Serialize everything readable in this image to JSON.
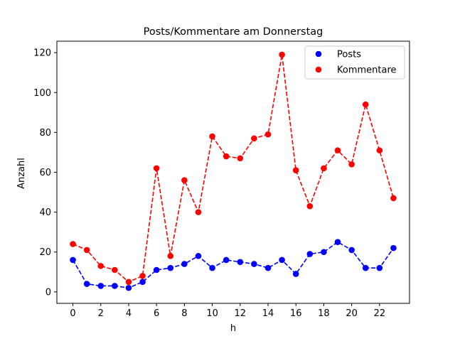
{
  "chart_data": {
    "type": "line",
    "title": "Posts/Kommentare am Donnerstag",
    "xlabel": "h",
    "ylabel": "Anzahl",
    "x": [
      0,
      1,
      2,
      3,
      4,
      5,
      6,
      7,
      8,
      9,
      10,
      11,
      12,
      13,
      14,
      15,
      16,
      17,
      18,
      19,
      20,
      21,
      22,
      23
    ],
    "xlim": [
      -1.15,
      24.15
    ],
    "ylim": [
      -5.75,
      125.75
    ],
    "xticks": [
      0,
      2,
      4,
      6,
      8,
      10,
      12,
      14,
      16,
      18,
      20,
      22
    ],
    "yticks": [
      0,
      20,
      40,
      60,
      80,
      100,
      120
    ],
    "grid": false,
    "legend_position": "top-right",
    "series": [
      {
        "name": "Posts",
        "color": "#0000ff",
        "style": "dashed-line-with-circle-markers",
        "values": [
          16,
          4,
          3,
          3,
          2,
          5,
          11,
          12,
          14,
          18,
          12,
          16,
          15,
          14,
          12,
          16,
          9,
          19,
          20,
          25,
          21,
          12,
          12,
          22
        ]
      },
      {
        "name": "Kommentare",
        "color": "#ff0000",
        "style": "dashed-line-with-circle-markers",
        "values": [
          24,
          21,
          13,
          11,
          5,
          8,
          62,
          18,
          56,
          40,
          78,
          68,
          67,
          77,
          79,
          119,
          61,
          43,
          62,
          71,
          64,
          94,
          71,
          47
        ]
      }
    ]
  }
}
